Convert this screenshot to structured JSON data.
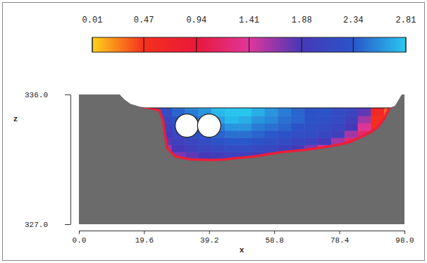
{
  "chart_data": {
    "type": "heatmap",
    "x_label": "x",
    "y_label": "z",
    "xlim": [
      0,
      98
    ],
    "xticks": [
      {
        "value": 0,
        "label": "0.0"
      },
      19.6,
      39.2,
      58.8,
      78.4,
      {
        "value": 98,
        "label": "98.0"
      }
    ],
    "ylim": [
      327,
      336
    ],
    "yticks": [
      {
        "value": 327,
        "label": "327.0"
      },
      {
        "value": 336,
        "label": "336.0"
      }
    ],
    "colorbar": {
      "range": [
        0.01,
        2.81
      ],
      "ticks": [
        0.01,
        0.47,
        0.94,
        1.41,
        1.88,
        2.34,
        2.81
      ]
    },
    "water_level": 335.07,
    "bed": {
      "x": [
        0,
        12.3,
        13.5,
        15.5,
        18.5,
        21.2,
        24.2,
        25.3,
        26.5,
        29,
        33.5,
        40,
        44,
        48,
        52.6,
        57,
        61,
        65.5,
        69.6,
        74,
        78,
        81.5,
        84.4,
        87.5,
        89.8,
        91.9,
        93.4,
        95.1,
        96.4,
        97.2,
        98
      ],
      "z": [
        336,
        336,
        335.7,
        335.35,
        335.15,
        335.07,
        334.9,
        334.2,
        332.3,
        331.7,
        331.5,
        331.45,
        331.5,
        331.6,
        331.7,
        331.85,
        332.0,
        332.1,
        332.2,
        332.35,
        332.5,
        332.7,
        333.0,
        333.35,
        333.7,
        334.3,
        335.07,
        335.2,
        335.7,
        336,
        336
      ]
    },
    "circles": {
      "x": [
        32.5,
        39.2
      ],
      "z": [
        333.84,
        333.84
      ],
      "radius": 3.5
    },
    "velocity": {
      "x_edges": [
        20,
        24,
        28,
        32,
        36,
        40,
        44,
        48,
        52,
        56,
        60,
        64,
        68,
        72,
        76,
        80,
        84,
        88,
        92,
        96
      ],
      "z_edges": [
        331,
        331.5,
        332,
        332.5,
        333,
        333.5,
        334,
        334.5,
        335,
        335.5
      ],
      "values": [
        [
          0.4,
          0.9,
          1.2,
          1.3,
          1.4,
          1.4,
          1.4,
          1.4,
          1.3,
          1.2,
          1.0,
          0.9,
          0.8,
          0.7,
          0.6,
          0.5,
          0.5,
          0.4,
          0.3
        ],
        [
          0.5,
          1.2,
          1.7,
          1.8,
          1.9,
          1.95,
          2.0,
          2.0,
          1.9,
          1.8,
          1.5,
          1.2,
          1.0,
          0.9,
          0.8,
          0.7,
          0.6,
          0.4,
          0.3
        ],
        [
          0.6,
          1.6,
          1.9,
          2.0,
          2.1,
          2.15,
          2.2,
          2.2,
          2.15,
          2.1,
          2.0,
          1.9,
          1.7,
          1.4,
          1.1,
          0.9,
          0.7,
          0.4,
          0.3
        ],
        [
          0.7,
          1.8,
          2.0,
          2.1,
          2.2,
          2.3,
          2.35,
          2.35,
          2.3,
          2.25,
          2.2,
          2.1,
          2.05,
          1.9,
          1.6,
          1.2,
          0.9,
          0.4,
          0.3
        ],
        [
          0.8,
          1.9,
          2.1,
          2.2,
          2.3,
          2.4,
          2.45,
          2.45,
          2.4,
          2.35,
          2.3,
          2.25,
          2.2,
          2.1,
          2.0,
          1.6,
          1.2,
          0.5,
          0.3
        ],
        [
          0.9,
          2.0,
          2.2,
          2.3,
          2.4,
          2.5,
          2.6,
          2.6,
          2.5,
          2.45,
          2.4,
          2.3,
          2.25,
          2.2,
          2.1,
          1.9,
          1.4,
          0.5,
          0.3
        ],
        [
          0.9,
          2.1,
          2.3,
          2.4,
          2.5,
          2.65,
          2.75,
          2.7,
          2.6,
          2.55,
          2.45,
          2.4,
          2.3,
          2.25,
          2.2,
          2.0,
          1.6,
          0.5,
          0.3
        ],
        [
          1.0,
          2.2,
          2.4,
          2.5,
          2.6,
          2.75,
          2.8,
          2.8,
          2.7,
          2.6,
          2.5,
          2.4,
          2.3,
          2.3,
          2.2,
          2.1,
          1.8,
          0.6,
          0.3
        ],
        [
          1.2,
          2.3,
          2.5,
          2.6,
          2.7,
          2.8,
          2.8,
          2.8,
          2.7,
          2.6,
          2.5,
          2.4,
          2.3,
          2.3,
          2.2,
          2.1,
          1.9,
          0.8,
          0.3
        ]
      ]
    }
  }
}
